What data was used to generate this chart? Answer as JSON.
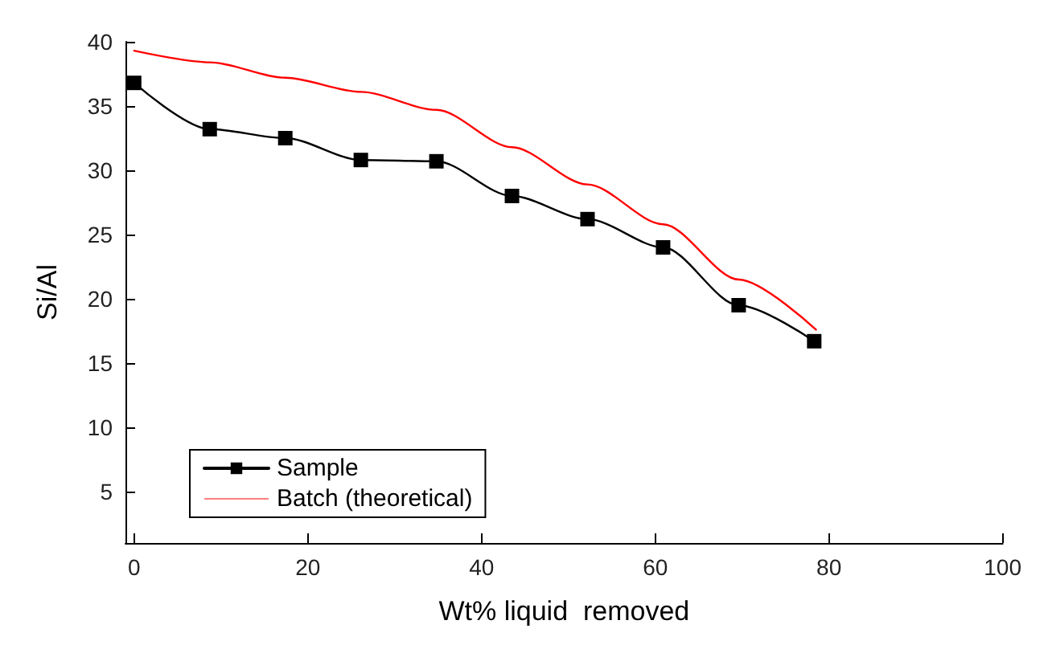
{
  "chart_data": {
    "type": "line",
    "xlabel": "Wt% liquid  removed",
    "ylabel": "Si/Al",
    "xlim": [
      -1,
      100
    ],
    "ylim": [
      1,
      40
    ],
    "xticks": [
      0,
      20,
      40,
      60,
      80,
      100
    ],
    "yticks": [
      5,
      10,
      15,
      20,
      25,
      30,
      35,
      40
    ],
    "grid": false,
    "legend": "bottom left",
    "series": [
      {
        "name": "Sample",
        "color": "#000000",
        "marker": "square",
        "x": [
          0,
          8.7,
          17.4,
          26.1,
          34.8,
          43.5,
          52.2,
          60.9,
          69.6,
          78.3
        ],
        "values": [
          36.8,
          33.2,
          32.5,
          30.8,
          30.7,
          28,
          26.2,
          24,
          19.5,
          16.7
        ]
      },
      {
        "name": "Batch (theoretical)",
        "color": "#ff0000",
        "marker": "none",
        "x": [
          0,
          8.7,
          17.4,
          26.1,
          34.8,
          43.5,
          52.2,
          60.9,
          69.6,
          78.5
        ],
        "values": [
          39.3,
          38.4,
          37.2,
          36.1,
          34.7,
          31.8,
          28.9,
          25.8,
          21.5,
          17.6
        ]
      }
    ]
  }
}
